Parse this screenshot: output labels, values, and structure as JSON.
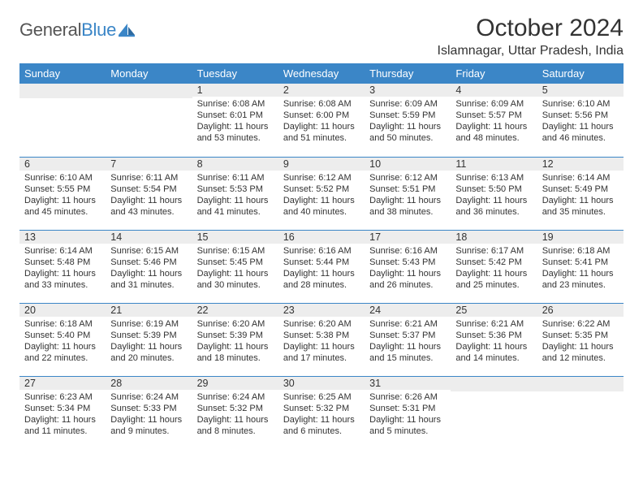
{
  "logo": {
    "text1": "General",
    "text2": "Blue"
  },
  "header": {
    "title": "October 2024",
    "location": "Islamnagar, Uttar Pradesh, India"
  },
  "calendar": {
    "type": "table",
    "columns": [
      "Sunday",
      "Monday",
      "Tuesday",
      "Wednesday",
      "Thursday",
      "Friday",
      "Saturday"
    ],
    "header_bg": "#3b86c7",
    "header_text_color": "#ffffff",
    "daynum_bg": "#ededed",
    "row_border_color": "#3b86c7",
    "text_color": "#333333",
    "background_color": "#ffffff",
    "day_fontsize": 12.5,
    "cell_fontsize": 11,
    "weeks": [
      [
        {
          "day": "",
          "sunrise": "",
          "sunset": "",
          "daylight": ""
        },
        {
          "day": "",
          "sunrise": "",
          "sunset": "",
          "daylight": ""
        },
        {
          "day": "1",
          "sunrise": "Sunrise: 6:08 AM",
          "sunset": "Sunset: 6:01 PM",
          "daylight": "Daylight: 11 hours and 53 minutes."
        },
        {
          "day": "2",
          "sunrise": "Sunrise: 6:08 AM",
          "sunset": "Sunset: 6:00 PM",
          "daylight": "Daylight: 11 hours and 51 minutes."
        },
        {
          "day": "3",
          "sunrise": "Sunrise: 6:09 AM",
          "sunset": "Sunset: 5:59 PM",
          "daylight": "Daylight: 11 hours and 50 minutes."
        },
        {
          "day": "4",
          "sunrise": "Sunrise: 6:09 AM",
          "sunset": "Sunset: 5:57 PM",
          "daylight": "Daylight: 11 hours and 48 minutes."
        },
        {
          "day": "5",
          "sunrise": "Sunrise: 6:10 AM",
          "sunset": "Sunset: 5:56 PM",
          "daylight": "Daylight: 11 hours and 46 minutes."
        }
      ],
      [
        {
          "day": "6",
          "sunrise": "Sunrise: 6:10 AM",
          "sunset": "Sunset: 5:55 PM",
          "daylight": "Daylight: 11 hours and 45 minutes."
        },
        {
          "day": "7",
          "sunrise": "Sunrise: 6:11 AM",
          "sunset": "Sunset: 5:54 PM",
          "daylight": "Daylight: 11 hours and 43 minutes."
        },
        {
          "day": "8",
          "sunrise": "Sunrise: 6:11 AM",
          "sunset": "Sunset: 5:53 PM",
          "daylight": "Daylight: 11 hours and 41 minutes."
        },
        {
          "day": "9",
          "sunrise": "Sunrise: 6:12 AM",
          "sunset": "Sunset: 5:52 PM",
          "daylight": "Daylight: 11 hours and 40 minutes."
        },
        {
          "day": "10",
          "sunrise": "Sunrise: 6:12 AM",
          "sunset": "Sunset: 5:51 PM",
          "daylight": "Daylight: 11 hours and 38 minutes."
        },
        {
          "day": "11",
          "sunrise": "Sunrise: 6:13 AM",
          "sunset": "Sunset: 5:50 PM",
          "daylight": "Daylight: 11 hours and 36 minutes."
        },
        {
          "day": "12",
          "sunrise": "Sunrise: 6:14 AM",
          "sunset": "Sunset: 5:49 PM",
          "daylight": "Daylight: 11 hours and 35 minutes."
        }
      ],
      [
        {
          "day": "13",
          "sunrise": "Sunrise: 6:14 AM",
          "sunset": "Sunset: 5:48 PM",
          "daylight": "Daylight: 11 hours and 33 minutes."
        },
        {
          "day": "14",
          "sunrise": "Sunrise: 6:15 AM",
          "sunset": "Sunset: 5:46 PM",
          "daylight": "Daylight: 11 hours and 31 minutes."
        },
        {
          "day": "15",
          "sunrise": "Sunrise: 6:15 AM",
          "sunset": "Sunset: 5:45 PM",
          "daylight": "Daylight: 11 hours and 30 minutes."
        },
        {
          "day": "16",
          "sunrise": "Sunrise: 6:16 AM",
          "sunset": "Sunset: 5:44 PM",
          "daylight": "Daylight: 11 hours and 28 minutes."
        },
        {
          "day": "17",
          "sunrise": "Sunrise: 6:16 AM",
          "sunset": "Sunset: 5:43 PM",
          "daylight": "Daylight: 11 hours and 26 minutes."
        },
        {
          "day": "18",
          "sunrise": "Sunrise: 6:17 AM",
          "sunset": "Sunset: 5:42 PM",
          "daylight": "Daylight: 11 hours and 25 minutes."
        },
        {
          "day": "19",
          "sunrise": "Sunrise: 6:18 AM",
          "sunset": "Sunset: 5:41 PM",
          "daylight": "Daylight: 11 hours and 23 minutes."
        }
      ],
      [
        {
          "day": "20",
          "sunrise": "Sunrise: 6:18 AM",
          "sunset": "Sunset: 5:40 PM",
          "daylight": "Daylight: 11 hours and 22 minutes."
        },
        {
          "day": "21",
          "sunrise": "Sunrise: 6:19 AM",
          "sunset": "Sunset: 5:39 PM",
          "daylight": "Daylight: 11 hours and 20 minutes."
        },
        {
          "day": "22",
          "sunrise": "Sunrise: 6:20 AM",
          "sunset": "Sunset: 5:39 PM",
          "daylight": "Daylight: 11 hours and 18 minutes."
        },
        {
          "day": "23",
          "sunrise": "Sunrise: 6:20 AM",
          "sunset": "Sunset: 5:38 PM",
          "daylight": "Daylight: 11 hours and 17 minutes."
        },
        {
          "day": "24",
          "sunrise": "Sunrise: 6:21 AM",
          "sunset": "Sunset: 5:37 PM",
          "daylight": "Daylight: 11 hours and 15 minutes."
        },
        {
          "day": "25",
          "sunrise": "Sunrise: 6:21 AM",
          "sunset": "Sunset: 5:36 PM",
          "daylight": "Daylight: 11 hours and 14 minutes."
        },
        {
          "day": "26",
          "sunrise": "Sunrise: 6:22 AM",
          "sunset": "Sunset: 5:35 PM",
          "daylight": "Daylight: 11 hours and 12 minutes."
        }
      ],
      [
        {
          "day": "27",
          "sunrise": "Sunrise: 6:23 AM",
          "sunset": "Sunset: 5:34 PM",
          "daylight": "Daylight: 11 hours and 11 minutes."
        },
        {
          "day": "28",
          "sunrise": "Sunrise: 6:24 AM",
          "sunset": "Sunset: 5:33 PM",
          "daylight": "Daylight: 11 hours and 9 minutes."
        },
        {
          "day": "29",
          "sunrise": "Sunrise: 6:24 AM",
          "sunset": "Sunset: 5:32 PM",
          "daylight": "Daylight: 11 hours and 8 minutes."
        },
        {
          "day": "30",
          "sunrise": "Sunrise: 6:25 AM",
          "sunset": "Sunset: 5:32 PM",
          "daylight": "Daylight: 11 hours and 6 minutes."
        },
        {
          "day": "31",
          "sunrise": "Sunrise: 6:26 AM",
          "sunset": "Sunset: 5:31 PM",
          "daylight": "Daylight: 11 hours and 5 minutes."
        },
        {
          "day": "",
          "sunrise": "",
          "sunset": "",
          "daylight": ""
        },
        {
          "day": "",
          "sunrise": "",
          "sunset": "",
          "daylight": ""
        }
      ]
    ]
  }
}
